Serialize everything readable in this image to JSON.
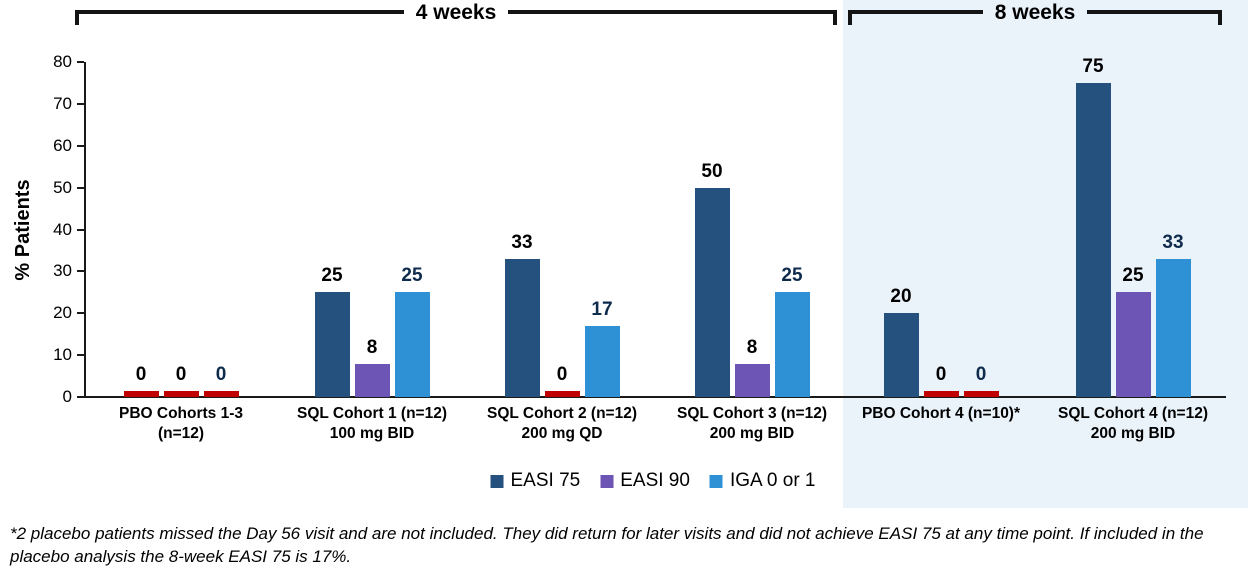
{
  "chart_data": {
    "type": "bar",
    "title": "",
    "xlabel": "",
    "ylabel": "% Patients",
    "ylim": [
      0,
      80
    ],
    "yticks": [
      0,
      10,
      20,
      30,
      40,
      50,
      60,
      70,
      80
    ],
    "grid": false,
    "legend_position": "bottom",
    "categories": [
      {
        "line1": "PBO Cohorts 1-3",
        "line2": "(n=12)"
      },
      {
        "line1": "SQL Cohort 1 (n=12)",
        "line2": "100 mg BID"
      },
      {
        "line1": "SQL Cohort 2 (n=12)",
        "line2": "200 mg QD"
      },
      {
        "line1": "SQL Cohort 3 (n=12)",
        "line2": "200 mg BID"
      },
      {
        "line1": "PBO Cohort 4 (n=10)*",
        "line2": ""
      },
      {
        "line1": "SQL Cohort 4 (n=12)",
        "line2": "200 mg BID"
      }
    ],
    "series": [
      {
        "name": "EASI 75",
        "color": "#25517F",
        "values": [
          0,
          25,
          33,
          50,
          20,
          75
        ]
      },
      {
        "name": "EASI 90",
        "color": "#6C55B5",
        "values": [
          0,
          8,
          0,
          8,
          0,
          25
        ]
      },
      {
        "name": "IGA 0 or 1",
        "color": "#2E91D6",
        "values": [
          0,
          25,
          17,
          25,
          0,
          33
        ]
      }
    ],
    "zero_bar_color": "#C00000",
    "value_label_colors": [
      "#000000",
      "#000000",
      "#0F2B4C"
    ],
    "time_brackets": [
      {
        "label": "4 weeks"
      },
      {
        "label": "8 weeks"
      }
    ],
    "shaded_region_color": "#EAF2FA",
    "axis_color": "#1a1a1a"
  },
  "footnote": "*2 placebo patients missed the Day 56 visit and are not included. They did return for later visits and did not achieve EASI 75 at any time point. If included in the placebo analysis the 8-week EASI 75 is 17%."
}
